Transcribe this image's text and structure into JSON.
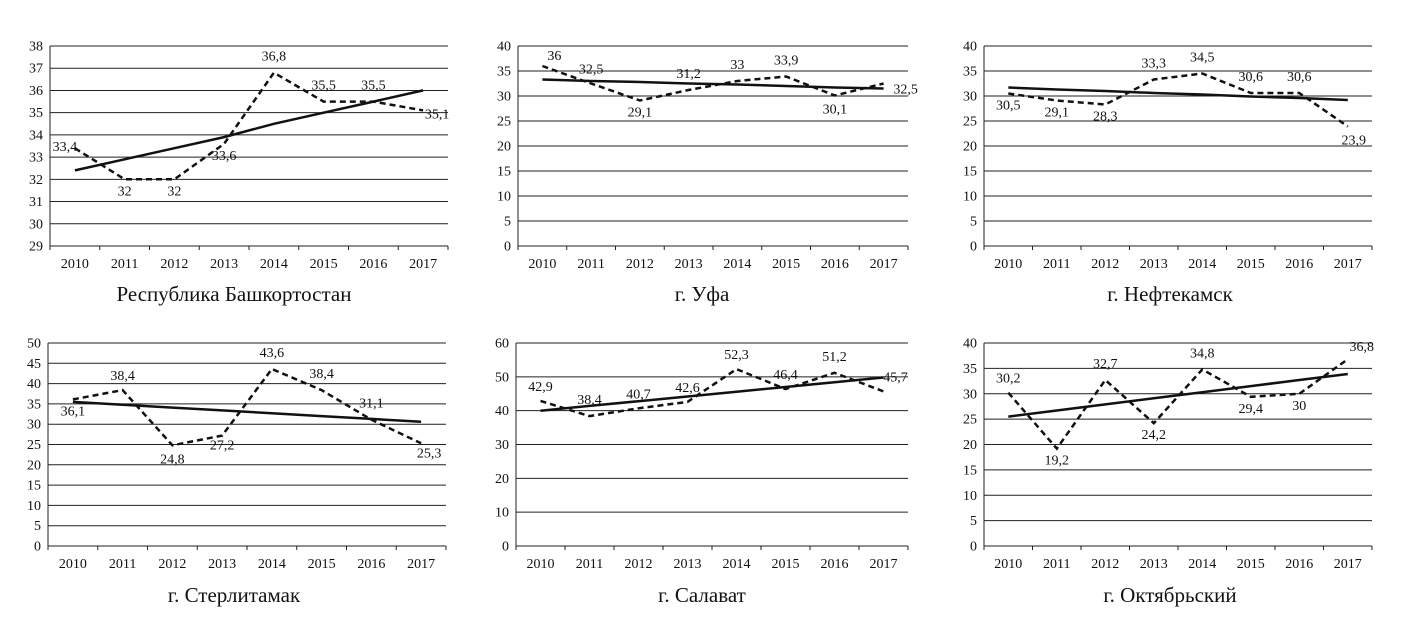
{
  "chart_data": [
    {
      "type": "line",
      "title": "Республика Башкортостан",
      "x": [
        2010,
        2011,
        2012,
        2013,
        2014,
        2015,
        2016,
        2017
      ],
      "ylim": [
        29,
        38
      ],
      "yticks": [
        29,
        30,
        31,
        32,
        33,
        34,
        35,
        36,
        37,
        38
      ],
      "grid": true,
      "series": [
        {
          "style": "dashed",
          "values": [
            33.4,
            32,
            32,
            33.6,
            36.8,
            35.5,
            35.5,
            35.1
          ],
          "labels": [
            "33,4",
            "32",
            "32",
            "33,6",
            "36,8",
            "35,5",
            "35,5",
            "35,1"
          ]
        },
        {
          "style": "solid-trend",
          "values": [
            32.4,
            32.9,
            33.4,
            33.9,
            34.5,
            35.0,
            35.5,
            36.0
          ]
        }
      ]
    },
    {
      "type": "line",
      "title": "г. Уфа",
      "x": [
        2010,
        2011,
        2012,
        2013,
        2014,
        2015,
        2016,
        2017
      ],
      "ylim": [
        0,
        40
      ],
      "yticks": [
        0,
        5,
        10,
        15,
        20,
        25,
        30,
        35,
        40
      ],
      "grid": true,
      "series": [
        {
          "style": "dashed",
          "values": [
            36,
            32.5,
            29.1,
            31.2,
            33,
            33.9,
            30.1,
            32.5
          ],
          "labels": [
            "36",
            "32,5",
            "29,1",
            "31,2",
            "33",
            "33,9",
            "30,1",
            "32,5"
          ]
        },
        {
          "style": "solid-trend",
          "values": [
            33.3,
            33.0,
            32.8,
            32.5,
            32.3,
            32.0,
            31.7,
            31.5
          ]
        }
      ]
    },
    {
      "type": "line",
      "title": "г. Нефтекамск",
      "x": [
        2010,
        2011,
        2012,
        2013,
        2014,
        2015,
        2016,
        2017
      ],
      "ylim": [
        0,
        40
      ],
      "yticks": [
        0,
        5,
        10,
        15,
        20,
        25,
        30,
        35,
        40
      ],
      "grid": true,
      "series": [
        {
          "style": "dashed",
          "values": [
            30.5,
            29.1,
            28.3,
            33.3,
            34.5,
            30.6,
            30.6,
            23.9
          ],
          "labels": [
            "30,5",
            "29,1",
            "28,3",
            "33,3",
            "34,5",
            "30,6",
            "30,6",
            "23,9"
          ]
        },
        {
          "style": "solid-trend",
          "values": [
            31.7,
            31.3,
            31.0,
            30.6,
            30.3,
            29.9,
            29.6,
            29.2
          ]
        }
      ]
    },
    {
      "type": "line",
      "title": "г. Стерлитамак",
      "x": [
        2010,
        2011,
        2012,
        2013,
        2014,
        2015,
        2016,
        2017
      ],
      "ylim": [
        0,
        50
      ],
      "yticks": [
        0,
        5,
        10,
        15,
        20,
        25,
        30,
        35,
        40,
        45,
        50
      ],
      "grid": true,
      "series": [
        {
          "style": "dashed",
          "values": [
            36.1,
            38.4,
            24.8,
            27.2,
            43.6,
            38.4,
            31.1,
            25.3
          ],
          "labels": [
            "36,1",
            "38,4",
            "24,8",
            "27,2",
            "43,6",
            "38,4",
            "31,1",
            "25,3"
          ]
        },
        {
          "style": "solid-trend",
          "values": [
            35.5,
            34.8,
            34.1,
            33.4,
            32.7,
            32.0,
            31.3,
            30.6
          ]
        }
      ]
    },
    {
      "type": "line",
      "title": "г. Салават",
      "x": [
        2010,
        2011,
        2012,
        2013,
        2014,
        2015,
        2016,
        2017
      ],
      "ylim": [
        0,
        60
      ],
      "yticks": [
        0,
        10,
        20,
        30,
        40,
        50,
        60
      ],
      "grid": true,
      "series": [
        {
          "style": "dashed",
          "values": [
            42.9,
            38.4,
            40.7,
            42.6,
            52.3,
            46.4,
            51.2,
            45.7
          ],
          "labels": [
            "42,9",
            "38,4",
            "40,7",
            "42,6",
            "52,3",
            "46,4",
            "51,2",
            "45,7"
          ]
        },
        {
          "style": "solid-trend",
          "values": [
            40.0,
            41.4,
            42.8,
            44.2,
            45.6,
            47.0,
            48.4,
            49.8
          ]
        }
      ]
    },
    {
      "type": "line",
      "title": "г. Октябрьский",
      "x": [
        2010,
        2011,
        2012,
        2013,
        2014,
        2015,
        2016,
        2017
      ],
      "ylim": [
        0,
        40
      ],
      "yticks": [
        0,
        5,
        10,
        15,
        20,
        25,
        30,
        35,
        40
      ],
      "grid": true,
      "series": [
        {
          "style": "dashed",
          "values": [
            30.2,
            19.2,
            32.7,
            24.2,
            34.8,
            29.4,
            30,
            36.8
          ],
          "labels": [
            "30,2",
            "19,2",
            "32,7",
            "24,2",
            "34,8",
            "29,4",
            "30",
            "36,8"
          ]
        },
        {
          "style": "solid-trend",
          "values": [
            25.5,
            26.7,
            27.9,
            29.1,
            30.3,
            31.5,
            32.7,
            33.9
          ]
        }
      ]
    }
  ]
}
